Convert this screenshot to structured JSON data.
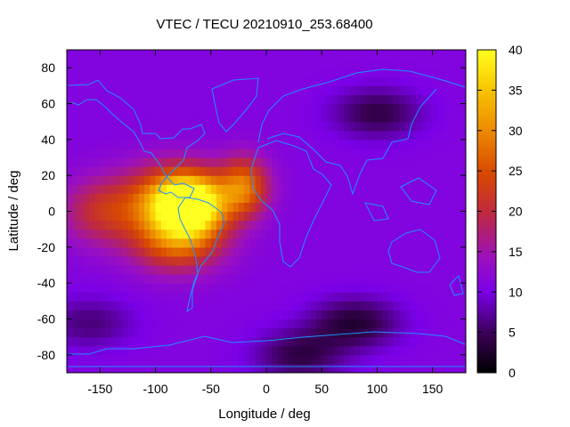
{
  "chart_data": {
    "type": "heatmap",
    "title": "VTEC / TECU 20210910_253.68400",
    "xlabel": "Longitude / deg",
    "ylabel": "Latitude / deg",
    "xlim": [
      -180,
      180
    ],
    "ylim": [
      -90,
      90
    ],
    "x_ticks": [
      -150,
      -100,
      -50,
      0,
      50,
      100,
      150
    ],
    "y_ticks": [
      -80,
      -60,
      -40,
      -20,
      0,
      20,
      40,
      60,
      80
    ],
    "colorbar": {
      "range": [
        0,
        40
      ],
      "ticks": [
        0,
        5,
        10,
        15,
        20,
        25,
        30,
        35,
        40
      ],
      "colormap": "gnuplot (black-purple-red-yellow)"
    },
    "background_level": 11,
    "features": [
      {
        "name": "equatorial anomaly peak",
        "lon": -68,
        "lat": 4,
        "value": 36
      },
      {
        "name": "equatorial crest",
        "lon": -85,
        "lat": 5,
        "value": 30
      },
      {
        "name": "atlantic crest",
        "lon": -20,
        "lat": 14,
        "value": 27
      },
      {
        "name": "south america lobe",
        "lon": -80,
        "lat": -18,
        "value": 24
      },
      {
        "name": "eastern pacific tail",
        "lon": -150,
        "lat": 0,
        "value": 20
      },
      {
        "name": "siberia minimum",
        "lon": 100,
        "lat": 55,
        "value": 4
      },
      {
        "name": "southern ocean minimum",
        "lon": 80,
        "lat": -62,
        "value": 3
      },
      {
        "name": "southern pacific minimum",
        "lon": -160,
        "lat": -62,
        "value": 6
      },
      {
        "name": "antarctic low",
        "lon": 30,
        "lat": -80,
        "value": 4
      }
    ],
    "coastline_color": "#1e90ff"
  }
}
